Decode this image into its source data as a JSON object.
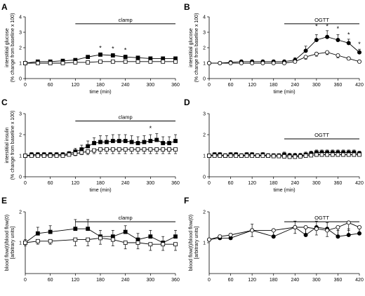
{
  "chart_data": [
    {
      "panel": "A",
      "type": "line",
      "ylabel": [
        "interstitial glucose",
        "(% change from baseline x 100)"
      ],
      "xlabel": "time (min)",
      "xlim": [
        0,
        360
      ],
      "ylim": [
        0,
        4
      ],
      "xticks": [
        0,
        60,
        120,
        180,
        240,
        300,
        360
      ],
      "yticks": [
        0,
        1,
        2,
        3,
        4
      ],
      "bar": {
        "label": "clamp",
        "from": 120,
        "to": 360
      },
      "series": [
        {
          "marker": "filled-square",
          "x": [
            0,
            30,
            60,
            90,
            120,
            150,
            180,
            210,
            240,
            270,
            300,
            330,
            360
          ],
          "y": [
            1.0,
            1.1,
            1.1,
            1.15,
            1.2,
            1.4,
            1.55,
            1.5,
            1.4,
            1.35,
            1.3,
            1.3,
            1.3
          ],
          "err": [
            0.05,
            0.1,
            0.1,
            0.1,
            0.1,
            0.1,
            0.12,
            0.12,
            0.12,
            0.1,
            0.1,
            0.1,
            0.1
          ]
        },
        {
          "marker": "open-square",
          "x": [
            0,
            30,
            60,
            90,
            120,
            150,
            180,
            210,
            240,
            270,
            300,
            330,
            360
          ],
          "y": [
            1.0,
            1.0,
            1.0,
            1.0,
            1.05,
            1.05,
            1.1,
            1.1,
            1.1,
            1.1,
            1.1,
            1.1,
            1.1
          ],
          "err": [
            0.05,
            0.05,
            0.05,
            0.05,
            0.05,
            0.05,
            0.05,
            0.05,
            0.05,
            0.05,
            0.05,
            0.05,
            0.05
          ]
        }
      ],
      "stars": [
        {
          "x": 180,
          "y": 1.85,
          "label": "*"
        },
        {
          "x": 210,
          "y": 1.8,
          "label": "*"
        },
        {
          "x": 240,
          "y": 1.7,
          "label": "*"
        }
      ]
    },
    {
      "panel": "B",
      "type": "line",
      "ylabel": [
        "interstitial glucose",
        "(% change from baseline x 100)"
      ],
      "xlabel": "time (min)",
      "xlim": [
        0,
        420
      ],
      "ylim": [
        0,
        4
      ],
      "xticks": [
        0,
        60,
        120,
        180,
        240,
        300,
        360,
        420
      ],
      "yticks": [
        0,
        1,
        2,
        3,
        4
      ],
      "bar": {
        "label": "OGTT",
        "from": 210,
        "to": 420
      },
      "series": [
        {
          "marker": "filled-circle",
          "x": [
            0,
            30,
            60,
            90,
            120,
            150,
            180,
            210,
            240,
            270,
            300,
            330,
            360,
            390,
            420
          ],
          "y": [
            1.0,
            1.0,
            1.05,
            1.1,
            1.1,
            1.1,
            1.1,
            1.1,
            1.2,
            1.8,
            2.5,
            2.7,
            2.5,
            2.3,
            1.7
          ],
          "err": [
            0.05,
            0.1,
            0.1,
            0.1,
            0.1,
            0.1,
            0.1,
            0.1,
            0.15,
            0.3,
            0.35,
            0.4,
            0.35,
            0.25,
            0.2
          ]
        },
        {
          "marker": "open-circle",
          "x": [
            0,
            30,
            60,
            90,
            120,
            150,
            180,
            210,
            240,
            270,
            300,
            330,
            360,
            390,
            420
          ],
          "y": [
            1.0,
            1.0,
            1.0,
            1.0,
            1.0,
            1.0,
            1.0,
            1.0,
            1.1,
            1.4,
            1.6,
            1.7,
            1.5,
            1.3,
            1.1
          ],
          "err": [
            0.05,
            0.05,
            0.05,
            0.05,
            0.05,
            0.05,
            0.05,
            0.05,
            0.1,
            0.15,
            0.15,
            0.15,
            0.15,
            0.1,
            0.1
          ]
        }
      ],
      "stars": [
        {
          "x": 300,
          "y": 3.25,
          "label": "*"
        },
        {
          "x": 330,
          "y": 3.25,
          "label": "*"
        },
        {
          "x": 360,
          "y": 3.1,
          "label": "*"
        },
        {
          "x": 390,
          "y": 2.7,
          "label": "*"
        },
        {
          "x": 420,
          "y": 2.1,
          "label": "*"
        }
      ]
    },
    {
      "panel": "C",
      "type": "line",
      "ylabel": [
        "interstitial insulin",
        "(% change from baseline x 100)"
      ],
      "xlabel": "time (min)",
      "xlim": [
        0,
        360
      ],
      "ylim": [
        0,
        3
      ],
      "xticks": [
        0,
        60,
        120,
        180,
        240,
        300,
        360
      ],
      "yticks": [
        0,
        1,
        2,
        3
      ],
      "bar": {
        "label": "clamp",
        "from": 120,
        "to": 360
      },
      "series": [
        {
          "marker": "filled-square",
          "x": [
            0,
            15,
            30,
            45,
            60,
            75,
            90,
            105,
            120,
            135,
            150,
            165,
            180,
            195,
            210,
            225,
            240,
            255,
            270,
            285,
            300,
            315,
            330,
            345,
            360
          ],
          "y": [
            1.0,
            1.05,
            1.05,
            1.05,
            1.05,
            1.05,
            1.05,
            1.1,
            1.2,
            1.3,
            1.45,
            1.6,
            1.65,
            1.65,
            1.7,
            1.7,
            1.7,
            1.65,
            1.6,
            1.65,
            1.7,
            1.75,
            1.6,
            1.6,
            1.7
          ],
          "err": [
            0.05,
            0.1,
            0.1,
            0.1,
            0.1,
            0.1,
            0.1,
            0.1,
            0.15,
            0.2,
            0.25,
            0.25,
            0.3,
            0.3,
            0.3,
            0.3,
            0.3,
            0.3,
            0.3,
            0.3,
            0.3,
            0.3,
            0.3,
            0.3,
            0.3
          ]
        },
        {
          "marker": "open-square",
          "x": [
            0,
            15,
            30,
            45,
            60,
            75,
            90,
            105,
            120,
            135,
            150,
            165,
            180,
            195,
            210,
            225,
            240,
            255,
            270,
            285,
            300,
            315,
            330,
            345,
            360
          ],
          "y": [
            1.0,
            1.0,
            1.0,
            1.0,
            1.0,
            1.0,
            1.0,
            1.05,
            1.1,
            1.15,
            1.2,
            1.25,
            1.3,
            1.3,
            1.3,
            1.3,
            1.3,
            1.3,
            1.3,
            1.3,
            1.3,
            1.3,
            1.3,
            1.3,
            1.3
          ],
          "err": [
            0.05,
            0.05,
            0.05,
            0.05,
            0.05,
            0.05,
            0.05,
            0.05,
            0.1,
            0.1,
            0.15,
            0.15,
            0.2,
            0.2,
            0.2,
            0.2,
            0.2,
            0.2,
            0.2,
            0.2,
            0.2,
            0.2,
            0.2,
            0.2,
            0.2
          ]
        }
      ],
      "stars": [
        {
          "x": 300,
          "y": 2.2,
          "label": "*"
        }
      ]
    },
    {
      "panel": "D",
      "type": "line",
      "xlabel": "time (min)",
      "xlim": [
        0,
        420
      ],
      "ylim": [
        0,
        3
      ],
      "xticks": [
        0,
        60,
        120,
        180,
        240,
        300,
        360,
        420
      ],
      "yticks": [
        0,
        1,
        2,
        3
      ],
      "bar": {
        "label": "OGTT",
        "from": 210,
        "to": 420
      },
      "series": [
        {
          "marker": "filled-square",
          "x": [
            0,
            15,
            30,
            45,
            60,
            75,
            90,
            105,
            120,
            135,
            150,
            165,
            180,
            195,
            210,
            225,
            240,
            255,
            270,
            285,
            300,
            315,
            330,
            345,
            360,
            375,
            390,
            405,
            420
          ],
          "y": [
            1.0,
            1.05,
            1.05,
            1.0,
            1.05,
            1.05,
            1.0,
            1.05,
            1.05,
            1.0,
            1.05,
            1.0,
            1.0,
            1.0,
            1.05,
            1.0,
            1.0,
            1.0,
            1.05,
            1.1,
            1.15,
            1.15,
            1.15,
            1.15,
            1.15,
            1.15,
            1.15,
            1.15,
            1.1
          ],
          "err": [
            0.05,
            0.1,
            0.1,
            0.1,
            0.1,
            0.1,
            0.1,
            0.1,
            0.1,
            0.1,
            0.1,
            0.1,
            0.1,
            0.1,
            0.12,
            0.12,
            0.12,
            0.12,
            0.12,
            0.12,
            0.12,
            0.12,
            0.12,
            0.12,
            0.12,
            0.12,
            0.12,
            0.12,
            0.12
          ]
        },
        {
          "marker": "open-square",
          "x": [
            0,
            15,
            30,
            45,
            60,
            75,
            90,
            105,
            120,
            135,
            150,
            165,
            180,
            195,
            210,
            225,
            240,
            255,
            270,
            285,
            300,
            315,
            330,
            345,
            360,
            375,
            390,
            405,
            420
          ],
          "y": [
            1.0,
            1.0,
            1.0,
            1.0,
            1.0,
            1.0,
            1.0,
            1.0,
            1.0,
            1.0,
            1.0,
            1.0,
            0.98,
            0.98,
            0.97,
            0.95,
            0.95,
            0.97,
            1.0,
            1.02,
            1.05,
            1.05,
            1.05,
            1.05,
            1.05,
            1.05,
            1.05,
            1.05,
            1.05
          ],
          "err": [
            0.05,
            0.05,
            0.05,
            0.05,
            0.05,
            0.05,
            0.05,
            0.05,
            0.05,
            0.05,
            0.05,
            0.05,
            0.08,
            0.08,
            0.08,
            0.08,
            0.08,
            0.08,
            0.08,
            0.08,
            0.08,
            0.08,
            0.08,
            0.08,
            0.08,
            0.08,
            0.08,
            0.08,
            0.08
          ]
        }
      ],
      "stars": []
    },
    {
      "panel": "E",
      "type": "line",
      "ylabel": [
        "blood flow(t)/blood flow(0)",
        "[arbitrary units]"
      ],
      "xlim": [
        0,
        360
      ],
      "ylim": [
        0,
        2
      ],
      "xticks": [
        0,
        60,
        120,
        180,
        240,
        300,
        360
      ],
      "yticks": [
        1,
        2
      ],
      "bar": {
        "label": "clamp",
        "from": 120,
        "to": 360
      },
      "series": [
        {
          "marker": "filled-square",
          "x": [
            0,
            30,
            60,
            120,
            150,
            180,
            210,
            240,
            270,
            300,
            330,
            360
          ],
          "y": [
            1.0,
            1.3,
            1.35,
            1.45,
            1.45,
            1.2,
            1.2,
            1.35,
            1.1,
            1.2,
            1.0,
            1.2
          ],
          "err": [
            0.1,
            0.2,
            0.2,
            0.3,
            0.3,
            0.2,
            0.2,
            0.2,
            0.2,
            0.2,
            0.2,
            0.2
          ]
        },
        {
          "marker": "open-square",
          "x": [
            0,
            30,
            60,
            120,
            150,
            180,
            210,
            240,
            270,
            300,
            330,
            360
          ],
          "y": [
            1.0,
            1.05,
            1.05,
            1.1,
            1.1,
            1.15,
            1.1,
            1.0,
            1.0,
            0.95,
            0.95,
            0.95
          ],
          "err": [
            0.1,
            0.1,
            0.1,
            0.2,
            0.2,
            0.2,
            0.2,
            0.2,
            0.2,
            0.2,
            0.2,
            0.2
          ]
        }
      ],
      "stars": []
    },
    {
      "panel": "F",
      "type": "line",
      "ylabel": [
        "blood flow(t)/blood flow(0)",
        "[arbitrary units]"
      ],
      "xlim": [
        0,
        420
      ],
      "ylim": [
        0,
        2
      ],
      "xticks": [
        0,
        60,
        120,
        180,
        240,
        300,
        360,
        420
      ],
      "yticks": [
        1,
        2
      ],
      "bar": {
        "label": "OGTT",
        "from": 210,
        "to": 420
      },
      "series": [
        {
          "marker": "filled-circle",
          "x": [
            0,
            30,
            60,
            120,
            180,
            240,
            270,
            300,
            330,
            360,
            390,
            420
          ],
          "y": [
            1.1,
            1.15,
            1.15,
            1.4,
            1.2,
            1.5,
            1.25,
            1.5,
            1.45,
            1.2,
            1.25,
            1.3
          ],
          "err": [
            0.05,
            0.1,
            0.15,
            0.2,
            0.2,
            0.2,
            0.2,
            0.2,
            0.2,
            0.2,
            0.2,
            0.2
          ]
        },
        {
          "marker": "open-circle",
          "x": [
            0,
            30,
            60,
            120,
            180,
            240,
            270,
            300,
            330,
            360,
            390,
            420
          ],
          "y": [
            1.1,
            1.2,
            1.25,
            1.4,
            1.4,
            1.5,
            1.5,
            1.45,
            1.4,
            1.5,
            1.65,
            1.5
          ],
          "err": [
            0.05,
            0.1,
            0.15,
            0.2,
            0.2,
            0.2,
            0.2,
            0.2,
            0.2,
            0.25,
            0.25,
            0.2
          ]
        }
      ],
      "stars": []
    }
  ]
}
